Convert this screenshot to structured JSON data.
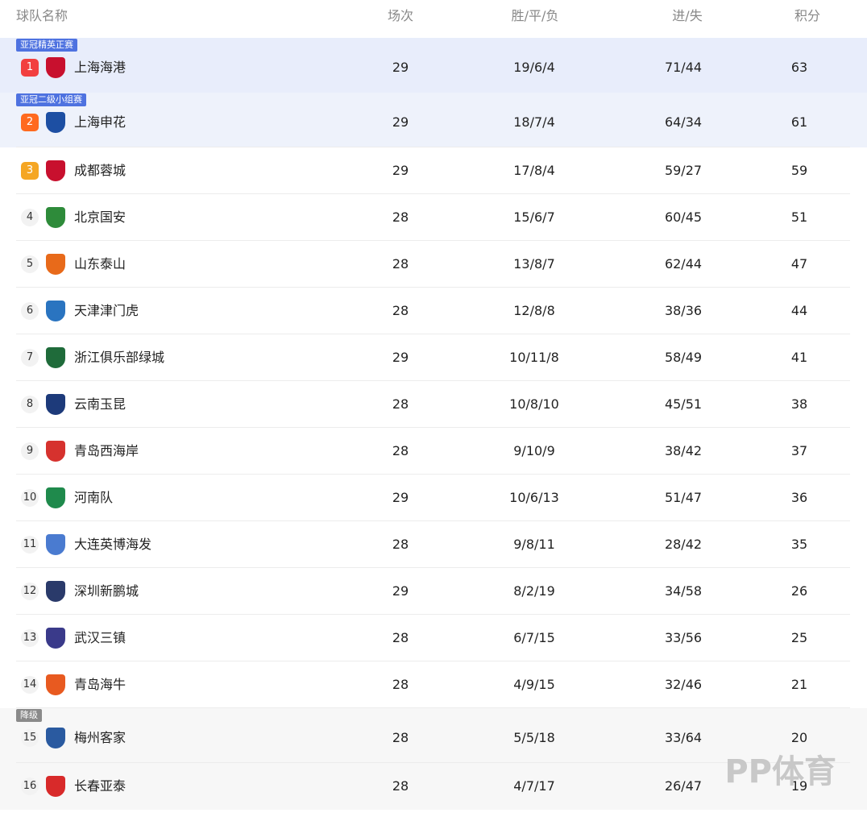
{
  "header": {
    "team": "球队名称",
    "played": "场次",
    "record": "胜/平/负",
    "goals": "进/失",
    "points": "积分"
  },
  "rows": [
    {
      "tag": "亚冠精英正赛",
      "rank": 1,
      "team": "上海海港",
      "played": 29,
      "record": "19/6/4",
      "goals": "71/44",
      "points": 63
    },
    {
      "tag": "亚冠二级小组赛",
      "rank": 2,
      "team": "上海申花",
      "played": 29,
      "record": "18/7/4",
      "goals": "64/34",
      "points": 61
    },
    {
      "rank": 3,
      "team": "成都蓉城",
      "played": 29,
      "record": "17/8/4",
      "goals": "59/27",
      "points": 59
    },
    {
      "rank": 4,
      "team": "北京国安",
      "played": 28,
      "record": "15/6/7",
      "goals": "60/45",
      "points": 51
    },
    {
      "rank": 5,
      "team": "山东泰山",
      "played": 28,
      "record": "13/8/7",
      "goals": "62/44",
      "points": 47
    },
    {
      "rank": 6,
      "team": "天津津门虎",
      "played": 28,
      "record": "12/8/8",
      "goals": "38/36",
      "points": 44
    },
    {
      "rank": 7,
      "team": "浙江俱乐部绿城",
      "played": 29,
      "record": "10/11/8",
      "goals": "58/49",
      "points": 41
    },
    {
      "rank": 8,
      "team": "云南玉昆",
      "played": 28,
      "record": "10/8/10",
      "goals": "45/51",
      "points": 38
    },
    {
      "rank": 9,
      "team": "青岛西海岸",
      "played": 28,
      "record": "9/10/9",
      "goals": "38/42",
      "points": 37
    },
    {
      "rank": 10,
      "team": "河南队",
      "played": 29,
      "record": "10/6/13",
      "goals": "51/47",
      "points": 36
    },
    {
      "rank": 11,
      "team": "大连英博海发",
      "played": 28,
      "record": "9/8/11",
      "goals": "28/42",
      "points": 35
    },
    {
      "rank": 12,
      "team": "深圳新鹏城",
      "played": 29,
      "record": "8/2/19",
      "goals": "34/58",
      "points": 26
    },
    {
      "rank": 13,
      "team": "武汉三镇",
      "played": 28,
      "record": "6/7/15",
      "goals": "33/56",
      "points": 25
    },
    {
      "rank": 14,
      "team": "青岛海牛",
      "played": 28,
      "record": "4/9/15",
      "goals": "32/46",
      "points": 21
    },
    {
      "tag": "降级",
      "rank": 15,
      "team": "梅州客家",
      "played": 28,
      "record": "5/5/18",
      "goals": "33/64",
      "points": 20
    },
    {
      "rank": 16,
      "team": "长春亚泰",
      "played": 28,
      "record": "4/7/17",
      "goals": "26/47",
      "points": 19
    }
  ],
  "watermark": "PP体育"
}
